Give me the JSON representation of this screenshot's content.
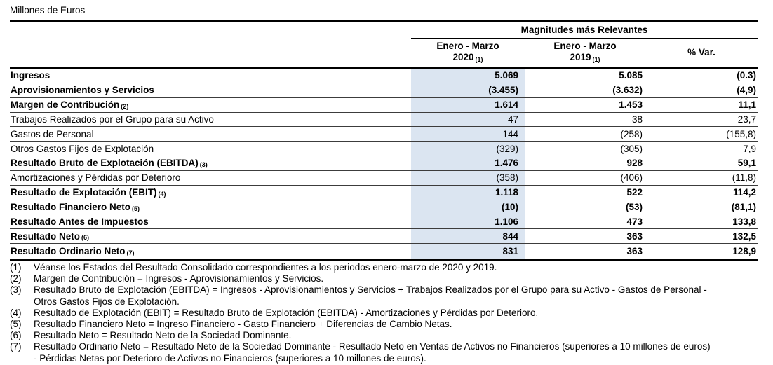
{
  "title": "Millones de Euros",
  "table": {
    "group_header": "Magnitudes más Relevantes",
    "columns": [
      {
        "line1": "Enero - Marzo",
        "line2": "2020",
        "ref": "(1)"
      },
      {
        "line1": "Enero - Marzo",
        "line2": "2019",
        "ref": "(1)"
      },
      {
        "single": "% Var."
      }
    ],
    "rows": [
      {
        "label": "Ingresos",
        "ref": "",
        "bold": true,
        "v2020": "5.069",
        "v2019": "5.085",
        "variation": "(0.3)"
      },
      {
        "label": "Aprovisionamientos y Servicios",
        "ref": "",
        "bold": true,
        "v2020": "(3.455)",
        "v2019": "(3.632)",
        "variation": "(4,9)"
      },
      {
        "label": "Margen de Contribución",
        "ref": "(2)",
        "bold": true,
        "v2020": "1.614",
        "v2019": "1.453",
        "variation": "11,1"
      },
      {
        "label": "Trabajos Realizados por el Grupo para su Activo",
        "ref": "",
        "bold": false,
        "v2020": "47",
        "v2019": "38",
        "variation": "23,7"
      },
      {
        "label": "Gastos de Personal",
        "ref": "",
        "bold": false,
        "v2020": "144",
        "v2019": "(258)",
        "variation": "(155,8)"
      },
      {
        "label": "Otros Gastos Fijos de Explotación",
        "ref": "",
        "bold": false,
        "v2020": "(329)",
        "v2019": "(305)",
        "variation": "7,9"
      },
      {
        "label": "Resultado Bruto de Explotación (EBITDA)",
        "ref": "(3)",
        "bold": true,
        "v2020": "1.476",
        "v2019": "928",
        "variation": "59,1"
      },
      {
        "label": "Amortizaciones y Pérdidas por Deterioro",
        "ref": "",
        "bold": false,
        "v2020": "(358)",
        "v2019": "(406)",
        "variation": "(11,8)"
      },
      {
        "label": "Resultado de Explotación (EBIT)",
        "ref": "(4)",
        "bold": true,
        "v2020": "1.118",
        "v2019": "522",
        "variation": "114,2"
      },
      {
        "label": "Resultado Financiero Neto",
        "ref": "(5)",
        "bold": true,
        "v2020": "(10)",
        "v2019": "(53)",
        "variation": "(81,1)"
      },
      {
        "label": "Resultado Antes de Impuestos",
        "ref": "",
        "bold": true,
        "v2020": "1.106",
        "v2019": "473",
        "variation": "133,8"
      },
      {
        "label": "Resultado Neto",
        "ref": "(6)",
        "bold": true,
        "v2020": "844",
        "v2019": "363",
        "variation": "132,5"
      },
      {
        "label": "Resultado Ordinario Neto",
        "ref": "(7)",
        "bold": true,
        "v2020": "831",
        "v2019": "363",
        "variation": "128,9"
      }
    ]
  },
  "footnotes": [
    {
      "num": "(1)",
      "lines": [
        "Véanse los Estados del Resultado Consolidado correspondientes a los periodos enero-marzo de 2020 y 2019."
      ]
    },
    {
      "num": "(2)",
      "lines": [
        "Margen de Contribución = Ingresos - Aprovisionamientos y Servicios."
      ]
    },
    {
      "num": "(3)",
      "lines": [
        "Resultado Bruto de Explotación (EBITDA) = Ingresos - Aprovisionamientos y Servicios + Trabajos Realizados por el Grupo para su Activo - Gastos de Personal -",
        "Otros Gastos Fijos de Explotación."
      ]
    },
    {
      "num": "(4)",
      "lines": [
        "Resultado de Explotación (EBIT) = Resultado Bruto de Explotación (EBITDA) - Amortizaciones y Pérdidas por Deterioro."
      ]
    },
    {
      "num": "(5)",
      "lines": [
        "Resultado Financiero Neto = Ingreso Financiero - Gasto Financiero + Diferencias de Cambio Netas."
      ]
    },
    {
      "num": "(6)",
      "lines": [
        "Resultado Neto = Resultado Neto de la Sociedad Dominante."
      ]
    },
    {
      "num": "(7)",
      "lines": [
        "Resultado Ordinario Neto = Resultado Neto de la Sociedad Dominante - Resultado Neto en Ventas de Activos no Financieros (superiores a 10 millones de euros)",
        "- Pérdidas Netas por Deterioro de Activos no Financieros (superiores a 10 millones de euros)."
      ]
    }
  ],
  "colors": {
    "highlight": "#dbe5f1",
    "rule": "#000000",
    "row_line": "#3c3c3c"
  }
}
